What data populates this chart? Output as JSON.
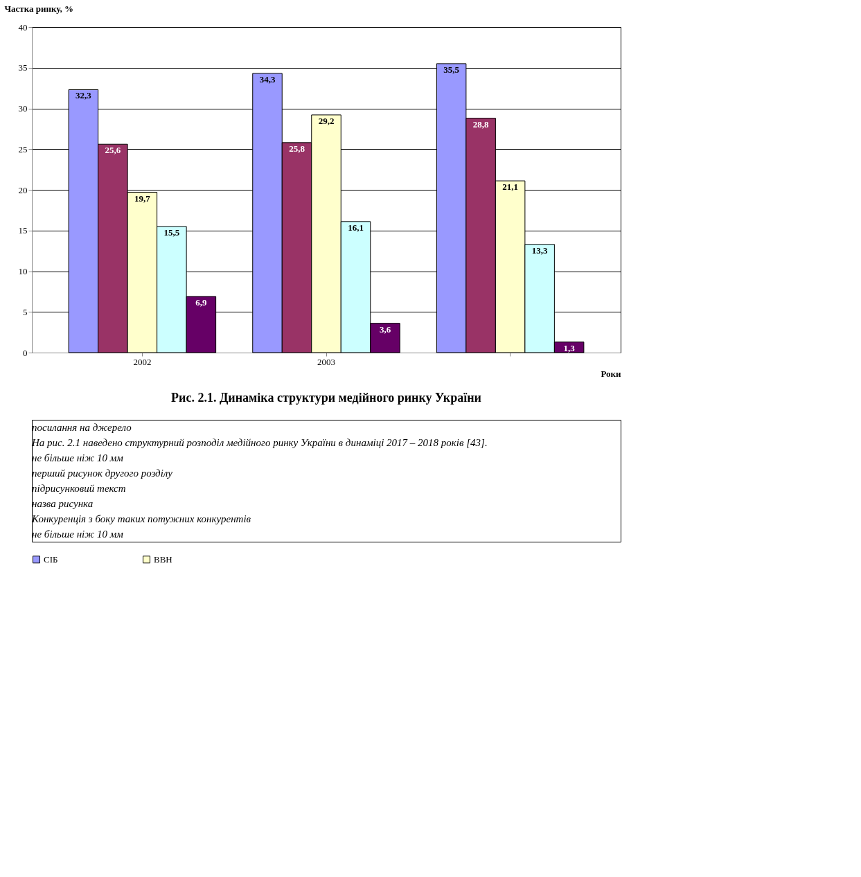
{
  "chart_data": {
    "type": "bar",
    "title": "Рис. 2.1. Динаміка структури медійного ринку України",
    "xlabel": "Роки",
    "ylabel": "Частка ринку, %",
    "categories": [
      "2002",
      "2003",
      null
    ],
    "series": [
      {
        "name": "СІБ",
        "color": "#9999ff",
        "values": [
          32.3,
          34.3,
          35.5
        ],
        "value_labels": [
          "32,3",
          "34,3",
          "35,5"
        ]
      },
      {
        "color": "#993366",
        "values": [
          25.6,
          25.8,
          28.8
        ],
        "value_labels": [
          "25,6",
          "25,8",
          "28,8"
        ]
      },
      {
        "name": "ВВН",
        "color": "#ffffcc",
        "values": [
          19.7,
          29.2,
          21.1
        ],
        "value_labels": [
          "19,7",
          "29,2",
          "21,1"
        ]
      },
      {
        "color": "#ccffff",
        "values": [
          15.5,
          16.1,
          13.3
        ],
        "value_labels": [
          "15,5",
          "16,1",
          "13,3"
        ]
      },
      {
        "color": "#660066",
        "values": [
          6.9,
          3.6,
          1.3
        ],
        "value_labels": [
          "6,9",
          "3,6",
          "1,3"
        ]
      }
    ],
    "ylim": [
      0,
      40
    ],
    "yticks": [
      0,
      5,
      10,
      15,
      20,
      25,
      30,
      35,
      40
    ],
    "grid": "y",
    "legend": "bottom",
    "annotations": [
      "посилання на джерело",
      "На рис. 2.1 наведено структурний розподіл медійного ринку України в динаміці 2017 – 2018 років [43].",
      "не більше ніж 10 мм",
      "перший рисунок другого розділу",
      "підрисунковий текст",
      "назва рисунка",
      "Конкуренція з боку таких потужних конкурентів",
      "не більше ніж 10 мм"
    ]
  }
}
